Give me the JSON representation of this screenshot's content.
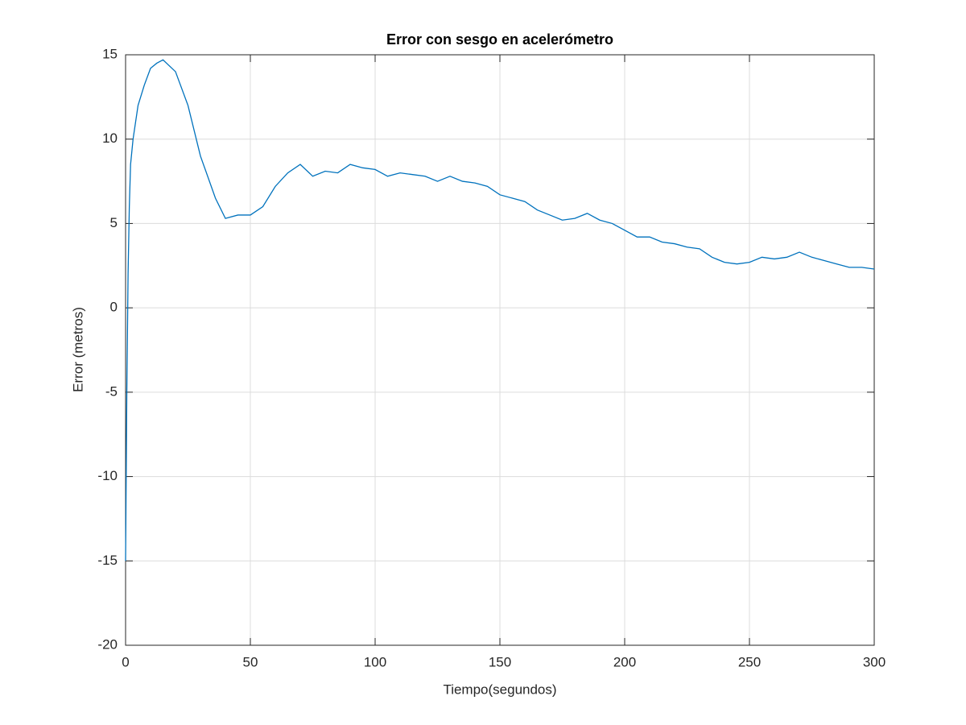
{
  "chart_data": {
    "type": "line",
    "title": "Error con sesgo en acelerómetro",
    "x_label": "Tiempo(segundos)",
    "y_label": "Error (metros)",
    "x": [
      0,
      0.5,
      1,
      1.5,
      2,
      3,
      5,
      7.5,
      10,
      12.5,
      15,
      20,
      25,
      30,
      36,
      40,
      45,
      50,
      55,
      60,
      65,
      70,
      75,
      80,
      85,
      90,
      95,
      100,
      105,
      110,
      115,
      120,
      125,
      130,
      135,
      140,
      145,
      150,
      155,
      160,
      165,
      170,
      175,
      180,
      185,
      190,
      195,
      200,
      205,
      210,
      215,
      220,
      225,
      230,
      235,
      240,
      245,
      250,
      255,
      260,
      265,
      270,
      275,
      280,
      285,
      290,
      295,
      300
    ],
    "series": [
      {
        "name": "Error",
        "color": "#0072bd",
        "values": [
          -15,
          -5,
          2,
          6,
          8.5,
          10,
          12,
          13.2,
          14.2,
          14.5,
          14.7,
          14,
          12,
          9,
          6.5,
          5.3,
          5.5,
          5.5,
          6,
          7.2,
          8,
          8.5,
          7.8,
          8.1,
          8,
          8.5,
          8.3,
          8.2,
          7.8,
          8,
          7.9,
          7.8,
          7.5,
          7.8,
          7.5,
          7.4,
          7.2,
          6.7,
          6.5,
          6.3,
          5.8,
          5.5,
          5.2,
          5.3,
          5.6,
          5.2,
          5,
          4.6,
          4.2,
          4.2,
          3.9,
          3.8,
          3.6,
          3.5,
          3,
          2.7,
          2.6,
          2.7,
          3,
          2.9,
          3,
          3.3,
          3,
          2.8,
          2.6,
          2.4,
          2.4,
          2.3
        ]
      }
    ],
    "xlim": [
      0,
      300
    ],
    "xticks": [
      0,
      50,
      100,
      150,
      200,
      250,
      300
    ],
    "ylim": [
      -20,
      15
    ],
    "yticks": [
      -20,
      -15,
      -10,
      -5,
      0,
      5,
      10,
      15
    ],
    "grid": true
  }
}
